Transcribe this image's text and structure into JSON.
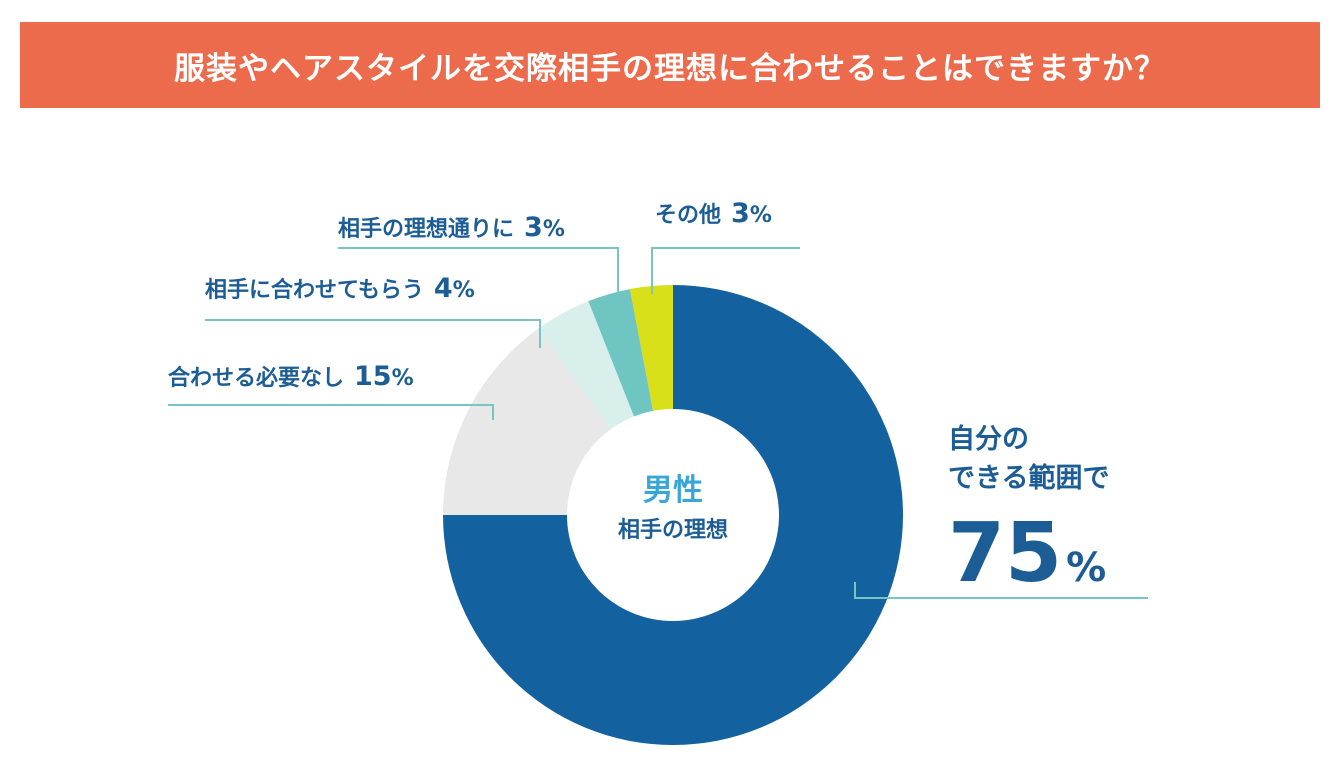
{
  "title": "服装やヘアスタイルを交際相手の理想に合わせることはできますか？",
  "colors": {
    "banner": "#ec6b4c",
    "leader": "#79c4c4"
  },
  "chart_data": {
    "type": "pie",
    "center_label": {
      "line1": "男性",
      "line2": "相手の理想"
    },
    "unit": "%",
    "slices": [
      {
        "label": "自分のできる範囲で",
        "label_lines": [
          "自分の",
          "できる範囲で"
        ],
        "value": 75,
        "value_text": "75",
        "color": "#1461a0"
      },
      {
        "label": "合わせる必要なし",
        "value": 15,
        "value_text": "15",
        "color": "#e8e8e8"
      },
      {
        "label": "相手に合わせてもらう",
        "value": 4,
        "value_text": "4",
        "color": "#d9efeb"
      },
      {
        "label": "相手の理想通りに",
        "value": 3,
        "value_text": "3",
        "color": "#6fc5c2"
      },
      {
        "label": "その他",
        "value": 3,
        "value_text": "3",
        "color": "#d9df19"
      }
    ]
  }
}
